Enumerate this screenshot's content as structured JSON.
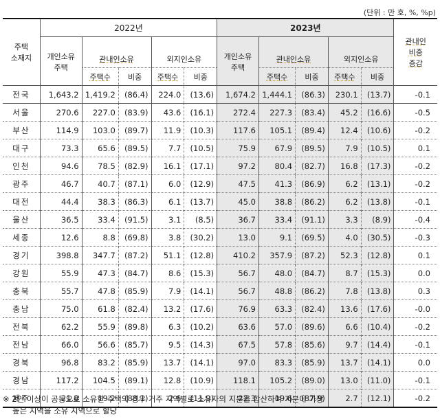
{
  "unit_label": "(단위 : 만 호, %, %p)",
  "header": {
    "region_col": "주택\n소재지",
    "year_2022": "2022년",
    "year_2023": "2023년",
    "individual_owned": "개인소유\n주택",
    "in_region_owned": "관내인소유",
    "out_region_owned": "외지인소유",
    "house_count": "주택수",
    "share": "비중",
    "change_col": "관내인\n비중\n증감"
  },
  "rows": [
    {
      "region": "전국",
      "y2022": {
        "total": "1,643.2",
        "in_cnt": "1,419.2",
        "in_pct": "(86.4)",
        "out_cnt": "224.0",
        "out_pct": "(13.6)"
      },
      "y2023": {
        "total": "1,674.2",
        "in_cnt": "1,444.1",
        "in_pct": "(86.3)",
        "out_cnt": "230.1",
        "out_pct": "(13.7)"
      },
      "change": "-0.1"
    },
    {
      "region": "서울",
      "y2022": {
        "total": "270.6",
        "in_cnt": "227.0",
        "in_pct": "(83.9)",
        "out_cnt": "43.6",
        "out_pct": "(16.1)"
      },
      "y2023": {
        "total": "272.4",
        "in_cnt": "227.3",
        "in_pct": "(83.4)",
        "out_cnt": "45.2",
        "out_pct": "(16.6)"
      },
      "change": "-0.5"
    },
    {
      "region": "부산",
      "y2022": {
        "total": "114.9",
        "in_cnt": "103.0",
        "in_pct": "(89.7)",
        "out_cnt": "11.9",
        "out_pct": "(10.3)"
      },
      "y2023": {
        "total": "117.6",
        "in_cnt": "105.1",
        "in_pct": "(89.4)",
        "out_cnt": "12.4",
        "out_pct": "(10.6)"
      },
      "change": "-0.2"
    },
    {
      "region": "대구",
      "y2022": {
        "total": "73.3",
        "in_cnt": "65.6",
        "in_pct": "(89.5)",
        "out_cnt": "7.7",
        "out_pct": "(10.5)"
      },
      "y2023": {
        "total": "75.9",
        "in_cnt": "67.9",
        "in_pct": "(89.5)",
        "out_cnt": "7.9",
        "out_pct": "(10.5)"
      },
      "change": "0.1"
    },
    {
      "region": "인천",
      "y2022": {
        "total": "94.6",
        "in_cnt": "78.5",
        "in_pct": "(82.9)",
        "out_cnt": "16.1",
        "out_pct": "(17.1)"
      },
      "y2023": {
        "total": "97.2",
        "in_cnt": "80.4",
        "in_pct": "(82.7)",
        "out_cnt": "16.8",
        "out_pct": "(17.3)"
      },
      "change": "-0.2"
    },
    {
      "region": "광주",
      "y2022": {
        "total": "46.7",
        "in_cnt": "40.7",
        "in_pct": "(87.1)",
        "out_cnt": "6.0",
        "out_pct": "(12.9)"
      },
      "y2023": {
        "total": "47.5",
        "in_cnt": "41.3",
        "in_pct": "(86.9)",
        "out_cnt": "6.2",
        "out_pct": "(13.1)"
      },
      "change": "-0.2"
    },
    {
      "region": "대전",
      "y2022": {
        "total": "44.4",
        "in_cnt": "38.3",
        "in_pct": "(86.3)",
        "out_cnt": "6.1",
        "out_pct": "(13.7)"
      },
      "y2023": {
        "total": "45.0",
        "in_cnt": "38.8",
        "in_pct": "(86.2)",
        "out_cnt": "6.2",
        "out_pct": "(13.8)"
      },
      "change": "-0.1"
    },
    {
      "region": "울산",
      "y2022": {
        "total": "36.5",
        "in_cnt": "33.4",
        "in_pct": "(91.5)",
        "out_cnt": "3.1",
        "out_pct": "(8.5)"
      },
      "y2023": {
        "total": "36.7",
        "in_cnt": "33.4",
        "in_pct": "(91.1)",
        "out_cnt": "3.3",
        "out_pct": "(8.9)"
      },
      "change": "-0.4"
    },
    {
      "region": "세종",
      "y2022": {
        "total": "12.6",
        "in_cnt": "8.8",
        "in_pct": "(69.8)",
        "out_cnt": "3.8",
        "out_pct": "(30.2)"
      },
      "y2023": {
        "total": "13.0",
        "in_cnt": "9.1",
        "in_pct": "(69.5)",
        "out_cnt": "4.0",
        "out_pct": "(30.5)"
      },
      "change": "-0.3"
    },
    {
      "region": "경기",
      "y2022": {
        "total": "398.8",
        "in_cnt": "347.7",
        "in_pct": "(87.2)",
        "out_cnt": "51.1",
        "out_pct": "(12.8)"
      },
      "y2023": {
        "total": "410.2",
        "in_cnt": "357.9",
        "in_pct": "(87.2)",
        "out_cnt": "52.3",
        "out_pct": "(12.8)"
      },
      "change": "0.1"
    },
    {
      "region": "강원",
      "y2022": {
        "total": "55.9",
        "in_cnt": "47.3",
        "in_pct": "(84.7)",
        "out_cnt": "8.6",
        "out_pct": "(15.3)"
      },
      "y2023": {
        "total": "56.7",
        "in_cnt": "48.0",
        "in_pct": "(84.7)",
        "out_cnt": "8.7",
        "out_pct": "(15.3)"
      },
      "change": "0.0"
    },
    {
      "region": "충북",
      "y2022": {
        "total": "55.7",
        "in_cnt": "47.8",
        "in_pct": "(85.9)",
        "out_cnt": "7.9",
        "out_pct": "(14.1)"
      },
      "y2023": {
        "total": "56.7",
        "in_cnt": "48.8",
        "in_pct": "(86.2)",
        "out_cnt": "7.8",
        "out_pct": "(13.8)"
      },
      "change": "0.3"
    },
    {
      "region": "충남",
      "y2022": {
        "total": "75.0",
        "in_cnt": "61.8",
        "in_pct": "(82.4)",
        "out_cnt": "13.2",
        "out_pct": "(17.6)"
      },
      "y2023": {
        "total": "76.9",
        "in_cnt": "63.3",
        "in_pct": "(82.4)",
        "out_cnt": "13.6",
        "out_pct": "(17.6)"
      },
      "change": "-0.0"
    },
    {
      "region": "전북",
      "y2022": {
        "total": "62.2",
        "in_cnt": "55.9",
        "in_pct": "(89.8)",
        "out_cnt": "6.3",
        "out_pct": "(10.2)"
      },
      "y2023": {
        "total": "63.6",
        "in_cnt": "57.0",
        "in_pct": "(89.6)",
        "out_cnt": "6.6",
        "out_pct": "(10.4)"
      },
      "change": "-0.2"
    },
    {
      "region": "전남",
      "y2022": {
        "total": "66.0",
        "in_cnt": "56.6",
        "in_pct": "(85.7)",
        "out_cnt": "9.5",
        "out_pct": "(14.3)"
      },
      "y2023": {
        "total": "67.5",
        "in_cnt": "57.8",
        "in_pct": "(85.6)",
        "out_cnt": "9.7",
        "out_pct": "(14.4)"
      },
      "change": "-0.1"
    },
    {
      "region": "경북",
      "y2022": {
        "total": "96.8",
        "in_cnt": "83.2",
        "in_pct": "(85.9)",
        "out_cnt": "13.7",
        "out_pct": "(14.1)"
      },
      "y2023": {
        "total": "97.0",
        "in_cnt": "83.3",
        "in_pct": "(85.9)",
        "out_cnt": "13.7",
        "out_pct": "(14.1)"
      },
      "change": "0.0"
    },
    {
      "region": "경남",
      "y2022": {
        "total": "117.2",
        "in_cnt": "104.5",
        "in_pct": "(89.1)",
        "out_cnt": "12.8",
        "out_pct": "(10.9)"
      },
      "y2023": {
        "total": "118.1",
        "in_cnt": "105.2",
        "in_pct": "(89.0)",
        "out_cnt": "13.0",
        "out_pct": "(11.0)"
      },
      "change": "-0.1"
    },
    {
      "region": "제주",
      "y2022": {
        "total": "21.8",
        "in_cnt": "19.2",
        "in_pct": "(88.1)",
        "out_cnt": "2.6",
        "out_pct": "(11.9)"
      },
      "y2023": {
        "total": "22.3",
        "in_cnt": "19.6",
        "in_pct": "(87.9)",
        "out_cnt": "2.7",
        "out_pct": "(12.1)"
      },
      "change": "-0.2"
    }
  ],
  "note": {
    "line1": "※ 2인 이상이 공동으로 소유한 주택의 경우 거주 지역별로 소유자의 지분을 합산하여 지분이 가장",
    "line2": "높은 지역을 소유 지역으로 할당"
  },
  "colors": {
    "shade_2023": "#e8e8e8",
    "rule": "#111111"
  }
}
